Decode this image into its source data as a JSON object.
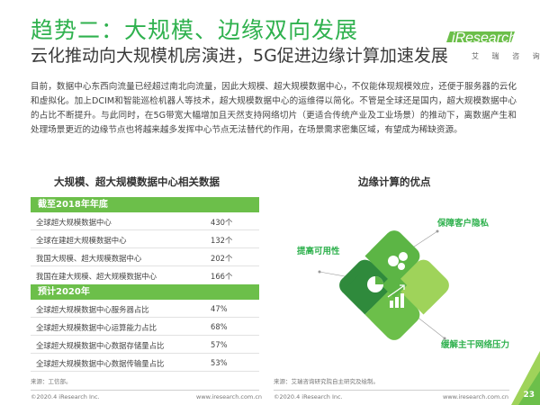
{
  "header": {
    "title": "趋势二：大规模、边缘双向发展",
    "subtitle": "云化推动向大规模机房演进，5G促进边缘计算加速发展"
  },
  "logo": {
    "brand_i": "i",
    "brand_text": "Research",
    "brand_cn": "艾 瑞 咨 询",
    "color": "#6cbf4a"
  },
  "body_text": "目前，数据中心东西向流量已经超过南北向流量，因此大规模、超大规模数据中心，不仅能体现规模效应，还便于服务器的云化和虚拟化。加上DCIM和智能巡检机器人等技术，超大规模数据中心的运维得以简化。不管是全球还是国内，超大规模数据中心的占比不断提升。与此同时，在5G带宽大幅增加且天然支持网络切片（更适合传统产业及工业场景）的推动下，离数据产生和处理场景更近的边缘节点也将越来越多发挥中心节点无法替代的作用，在场景需求密集区域，有望成为稀缺资源。",
  "left_panel": {
    "heading": "大规模、超大规模数据中心相关数据",
    "sections": [
      {
        "header": "截至2018年年底",
        "rows": [
          {
            "label": "全球超大规模数据中心",
            "value": "430个"
          },
          {
            "label": "全球在建超大规模数据中心",
            "value": "132个"
          },
          {
            "label": "我国大规模、超大规模数据中心",
            "value": "202个"
          },
          {
            "label": "我国在建大规模、超大规模数据中心",
            "value": "166个"
          }
        ]
      },
      {
        "header": "预计2020年",
        "rows": [
          {
            "label": "全球超大规模数据中心服务器占比",
            "value": "47%"
          },
          {
            "label": "全球超大规模数据中心运算能力占比",
            "value": "68%"
          },
          {
            "label": "全球超大规模数据中心数据存储量占比",
            "value": "57%"
          },
          {
            "label": "全球超大规模数据中心数据传输量占比",
            "value": "53%"
          }
        ]
      }
    ]
  },
  "right_panel": {
    "heading": "边缘计算的优点",
    "advantages": [
      "保障客户隐私",
      "提高可用性",
      "缓解主干网络压力"
    ],
    "colors": {
      "dark_green": "#2f8a3c",
      "mid_green": "#5cb545",
      "light_green": "#9fd35a",
      "label_green": "#2fb14e"
    }
  },
  "footer": {
    "source_left": "来源：工信部。",
    "source_right": "来源：艾瑞咨询研究院自主研究及绘制。",
    "copyright_left": "©2020.4 iResearch Inc.",
    "url_left": "www.iresearch.com.cn",
    "copyright_right": "©2020.4 iResearch Inc.",
    "url_right": "www.iresearch.com.cn",
    "page_number": "23"
  }
}
